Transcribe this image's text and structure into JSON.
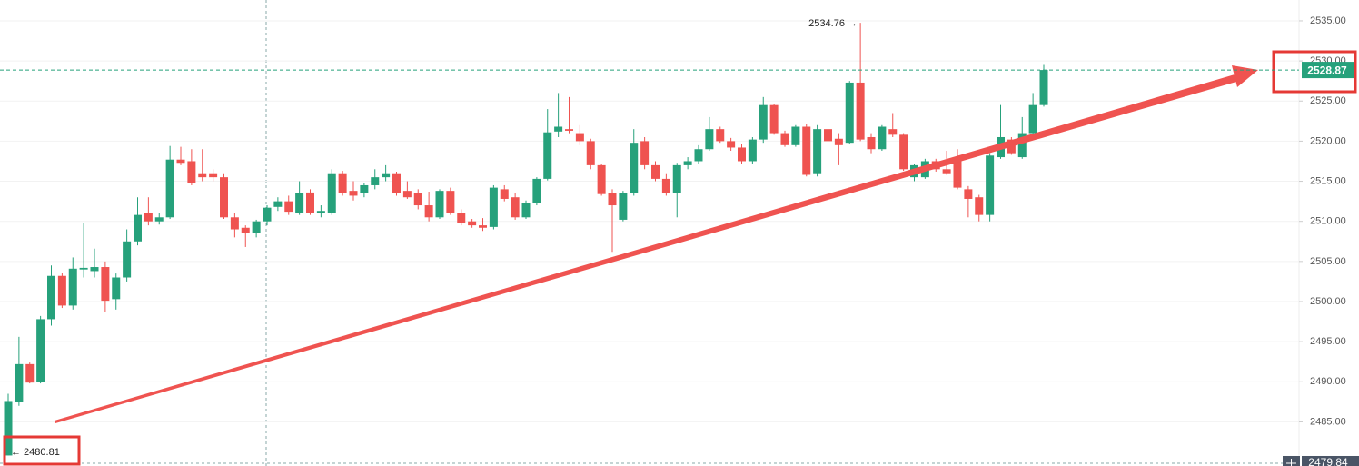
{
  "chart_data": {
    "type": "candlestick",
    "up_color": "#26a17b",
    "down_color": "#ef5350",
    "ylim": [
      2479.5,
      2537.6
    ],
    "yticks": [
      {
        "value": 2485,
        "label": "2485.00"
      },
      {
        "value": 2490,
        "label": "2490.00"
      },
      {
        "value": 2495,
        "label": "2495.00"
      },
      {
        "value": 2500,
        "label": "2500.00"
      },
      {
        "value": 2505,
        "label": "2505.00"
      },
      {
        "value": 2510,
        "label": "2510.00"
      },
      {
        "value": 2515,
        "label": "2515.00"
      },
      {
        "value": 2520,
        "label": "2520.00"
      },
      {
        "value": 2525,
        "label": "2525.00"
      },
      {
        "value": 2530,
        "label": "2530.00"
      },
      {
        "value": 2535,
        "label": "2535.00"
      }
    ],
    "grid": true,
    "open": [
      2480.81,
      2487.5,
      2492.2,
      2490,
      2497.8,
      2503.2,
      2499.5,
      2504,
      2503.8,
      2504.3,
      2500.3,
      2503,
      2507.5,
      2511,
      2510,
      2510.5,
      2517.7,
      2517.5,
      2516,
      2516,
      2515.5,
      2510.5,
      2509.2,
      2508.5,
      2510,
      2511.8,
      2512.5,
      2511,
      2513.6,
      2511,
      2511,
      2516,
      2513.8,
      2513.5,
      2514.5,
      2515.5,
      2516,
      2513.8,
      2513.5,
      2512,
      2510.5,
      2513.8,
      2511,
      2510,
      2509.5,
      2509.3,
      2514,
      2513,
      2510.5,
      2512.3,
      2515.3,
      2521.2,
      2521.5,
      2521,
      2520,
      2517,
      2513.5,
      2510.2,
      2513.5,
      2520,
      2517,
      2515.3,
      2513.5,
      2517,
      2517.5,
      2519,
      2521.5,
      2520,
      2519.2,
      2517.5,
      2520.2,
      2524.5,
      2521,
      2519.5,
      2521.8,
      2516,
      2521.5,
      2520.3,
      2519.8,
      2527.3,
      2520.5,
      2519,
      2521.5,
      2520.8,
      2515.5,
      2515.5,
      2517.5,
      2516.5,
      2518,
      2514,
      2513,
      2510.8,
      2518,
      2520.2,
      2518,
      2521,
      2524.5
    ],
    "high": [
      2488.5,
      2495.6,
      2492.4,
      2498.2,
      2504.5,
      2503.6,
      2505.5,
      2509.8,
      2506.6,
      2505,
      2503.5,
      2509,
      2513,
      2513,
      2511,
      2519.4,
      2519.3,
      2519,
      2519,
      2516.5,
      2516,
      2511,
      2509.5,
      2510.2,
      2512,
      2513,
      2513.2,
      2515,
      2514,
      2512,
      2516.5,
      2516.3,
      2515,
      2514.8,
      2516.5,
      2517,
      2516.2,
      2515,
      2514,
      2513.7,
      2514,
      2514.2,
      2511.5,
      2510.3,
      2510.4,
      2514.5,
      2514.5,
      2513.5,
      2512.6,
      2515.5,
      2524,
      2526,
      2525.5,
      2522,
      2520.3,
      2517.2,
      2514,
      2513.8,
      2521.5,
      2520.5,
      2517.5,
      2516,
      2517.3,
      2518,
      2519.5,
      2523,
      2521.8,
      2520.4,
      2519.6,
      2520.5,
      2525.5,
      2524.6,
      2521.3,
      2522,
      2522.1,
      2522,
      2528.8,
      2521,
      2527.5,
      2534.76,
      2521,
      2522,
      2523.5,
      2521,
      2517.2,
      2517.8,
      2517.8,
      2518.8,
      2519,
      2514.4,
      2513.3,
      2518.5,
      2524.5,
      2520.5,
      2523,
      2526,
      2529.5
    ],
    "low": [
      2480.81,
      2487,
      2489.8,
      2489.8,
      2497,
      2499.2,
      2499,
      2503,
      2503,
      2498.7,
      2499,
      2502.5,
      2507,
      2509.5,
      2509.6,
      2510.3,
      2517,
      2514.5,
      2515,
      2515,
      2510.3,
      2508,
      2506.8,
      2508,
      2509.5,
      2511.3,
      2510.8,
      2510.8,
      2510.8,
      2510.5,
      2510.8,
      2513.2,
      2512.6,
      2513,
      2514,
      2515,
      2513.2,
      2512.8,
      2511.5,
      2510,
      2510.3,
      2510.8,
      2509.5,
      2509.2,
      2508.8,
      2509,
      2512.5,
      2510.2,
      2510.3,
      2512,
      2515.1,
      2520.5,
      2521,
      2519.5,
      2516.5,
      2513.2,
      2506.2,
      2510,
      2513.2,
      2516.5,
      2515,
      2513.2,
      2510.5,
      2516.5,
      2517.2,
      2518.8,
      2519.8,
      2518.8,
      2517.2,
      2517.2,
      2519.8,
      2520.8,
      2519.3,
      2519.3,
      2515.6,
      2515.6,
      2519.8,
      2517,
      2519.6,
      2520,
      2518.5,
      2518.8,
      2520.5,
      2516.3,
      2515,
      2515.3,
      2516.2,
      2515.8,
      2514,
      2510.5,
      2510,
      2510,
      2517.8,
      2518.3,
      2517.8,
      2520.8,
      2524.3
    ],
    "close": [
      2487.6,
      2492.2,
      2489.9,
      2497.8,
      2503.2,
      2499.5,
      2504.1,
      2504.2,
      2504.3,
      2500.1,
      2503,
      2507.5,
      2510.8,
      2510,
      2510.5,
      2517.7,
      2517.3,
      2514.8,
      2515.5,
      2515.5,
      2510.5,
      2509,
      2508.5,
      2510,
      2511.7,
      2512.5,
      2511.2,
      2513.5,
      2511,
      2511.3,
      2516,
      2513.5,
      2513.2,
      2514.5,
      2515.5,
      2516,
      2513.5,
      2513,
      2512,
      2510.5,
      2513.8,
      2511,
      2509.8,
      2509.5,
      2509.2,
      2514.2,
      2512.8,
      2510.5,
      2512.3,
      2515.3,
      2521.1,
      2521.8,
      2521.3,
      2520,
      2517,
      2513.4,
      2512,
      2513.5,
      2519.8,
      2517,
      2515.3,
      2513.5,
      2517,
      2517.5,
      2519,
      2521.5,
      2520,
      2519.2,
      2517.5,
      2520.2,
      2524.5,
      2521,
      2519.5,
      2521.8,
      2515.8,
      2521.5,
      2520,
      2519.5,
      2527.3,
      2520.2,
      2519,
      2521.8,
      2520.8,
      2516.5,
      2517,
      2517.5,
      2516.5,
      2516,
      2514.2,
      2512.8,
      2510.8,
      2518.2,
      2520.5,
      2518.5,
      2521,
      2524.5,
      2528.87
    ],
    "annotations": [
      {
        "value": 2534.76,
        "label": "2534.76 →"
      },
      {
        "value": 2480.81,
        "label": "← 2480.81"
      }
    ],
    "last_price": 2528.87,
    "crosshair_price": 2479.84
  }
}
